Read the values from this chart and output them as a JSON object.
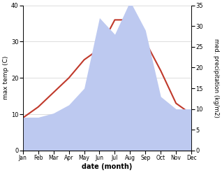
{
  "months": [
    "Jan",
    "Feb",
    "Mar",
    "Apr",
    "May",
    "Jun",
    "Jul",
    "Aug",
    "Sep",
    "Oct",
    "Nov",
    "Dec"
  ],
  "temp": [
    9,
    12,
    16,
    20,
    25,
    28,
    36,
    36,
    30,
    22,
    13,
    10
  ],
  "precip": [
    8,
    8,
    9,
    11,
    15,
    32,
    28,
    36,
    29,
    13,
    10,
    10
  ],
  "temp_color": "#c0392b",
  "precip_fill_color": "#bdc9f0",
  "temp_ylim": [
    0,
    40
  ],
  "precip_ylim": [
    0,
    35
  ],
  "temp_yticks": [
    0,
    10,
    20,
    30,
    40
  ],
  "precip_yticks": [
    0,
    5,
    10,
    15,
    20,
    25,
    30,
    35
  ],
  "xlabel": "date (month)",
  "ylabel_left": "max temp (C)",
  "ylabel_right": "med. precipitation (kg/m2)"
}
